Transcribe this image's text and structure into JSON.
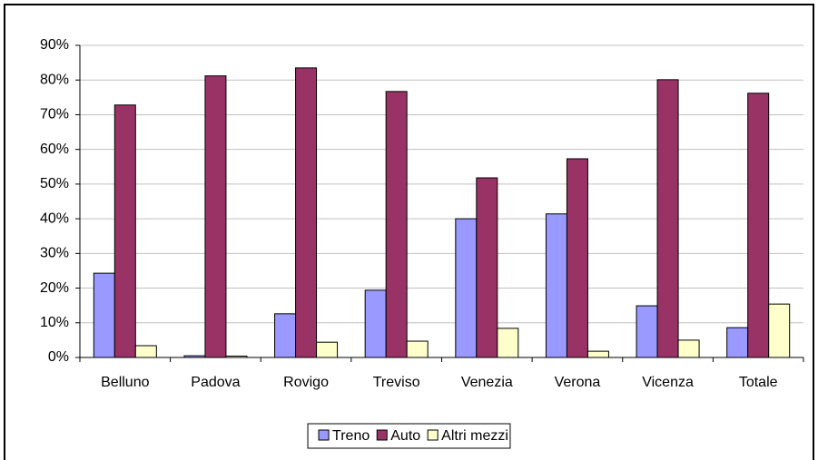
{
  "chart_data": {
    "type": "bar",
    "categories": [
      "Belluno",
      "Padova",
      "Rovigo",
      "Treviso",
      "Venezia",
      "Verona",
      "Vicenza",
      "Totale"
    ],
    "series": [
      {
        "name": "Treno",
        "color": "#9999ff",
        "values": [
          24.3,
          0.5,
          12.6,
          19.4,
          40,
          41.4,
          14.9,
          8.6
        ]
      },
      {
        "name": "Auto",
        "color": "#993366",
        "values": [
          72.8,
          81.2,
          83.5,
          76.7,
          51.8,
          57.3,
          80.1,
          76.2
        ]
      },
      {
        "name": "Altri mezzi",
        "color": "#ffffcc",
        "values": [
          3.4,
          0.4,
          4.4,
          4.7,
          8.4,
          1.8,
          5,
          15.4
        ]
      }
    ],
    "ylim": [
      0,
      90
    ],
    "yticks": [
      {
        "value": 0,
        "label": "0%"
      },
      {
        "value": 10,
        "label": "10%"
      },
      {
        "value": 20,
        "label": "20%"
      },
      {
        "value": 30,
        "label": "30%"
      },
      {
        "value": 40,
        "label": "40%"
      },
      {
        "value": 50,
        "label": "50%"
      },
      {
        "value": 60,
        "label": "60%"
      },
      {
        "value": 70,
        "label": "70%"
      },
      {
        "value": 80,
        "label": "80%"
      },
      {
        "value": 90,
        "label": "90%"
      }
    ],
    "grid": true,
    "legend": "bottom"
  }
}
